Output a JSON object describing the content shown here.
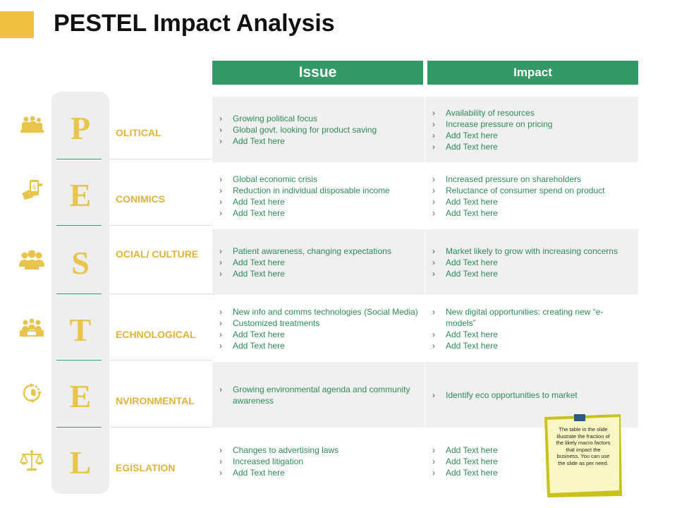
{
  "title": "PESTEL Impact Analysis",
  "colors": {
    "accent": "#f1c040",
    "header_green": "#339966",
    "letter_gold": "#e8c54a",
    "label_gold": "#e0b43a",
    "text_green": "#2e8b57"
  },
  "headers": {
    "issue": "Issue",
    "impact": "Impact"
  },
  "rows": [
    {
      "letter": "P",
      "label": "OLITICAL",
      "icon": "politics-people-icon",
      "issue": [
        "Growing political focus",
        "Global govt. looking for product saving",
        "Add Text here"
      ],
      "impact": [
        "Availability of resources",
        "Increase pressure on pricing",
        "Add Text here",
        "Add Text here"
      ]
    },
    {
      "letter": "E",
      "label": "CONIMICS",
      "icon": "money-phone-icon",
      "issue": [
        "Global economic crisis",
        "Reduction in individual disposable income",
        "Add Text here",
        "Add Text here"
      ],
      "impact": [
        "Increased pressure on shareholders",
        "Reluctance of consumer spend on product",
        "Add Text here",
        "Add Text here"
      ]
    },
    {
      "letter": "S",
      "label": "OCIAL/ CULTURE",
      "icon": "group-people-icon",
      "issue": [
        "Patient awareness, changing expectations",
        "Add Text here",
        "Add Text here"
      ],
      "impact": [
        "Market likely to grow with increasing concerns",
        "Add Text here",
        "Add Text here"
      ]
    },
    {
      "letter": "T",
      "label": "ECHNOLOGICAL",
      "icon": "team-meeting-icon",
      "issue": [
        "New info and comms technologies (Social Media)",
        "Customized treatments",
        "Add Text here",
        "Add Text here"
      ],
      "impact": [
        "New digital opportunities: creating new “e-models”",
        "Add Text here",
        "Add Text here"
      ]
    },
    {
      "letter": "E",
      "label": "NVIRONMENTAL",
      "icon": "eco-cycle-icon",
      "issue": [
        "Growing environmental agenda and community awareness"
      ],
      "impact": [
        "Identify eco opportunities to market"
      ]
    },
    {
      "letter": "L",
      "label": "EGISLATION",
      "icon": "scales-icon",
      "issue": [
        "Changes to advertising laws",
        "Increased litigation",
        "Add Text here"
      ],
      "impact": [
        "Add Text here",
        "Add Text here",
        "Add Text here"
      ]
    }
  ],
  "note": "The table in the slide illustrate the fraction of the likely macro factors that impact the business. You can use the slide as per need."
}
